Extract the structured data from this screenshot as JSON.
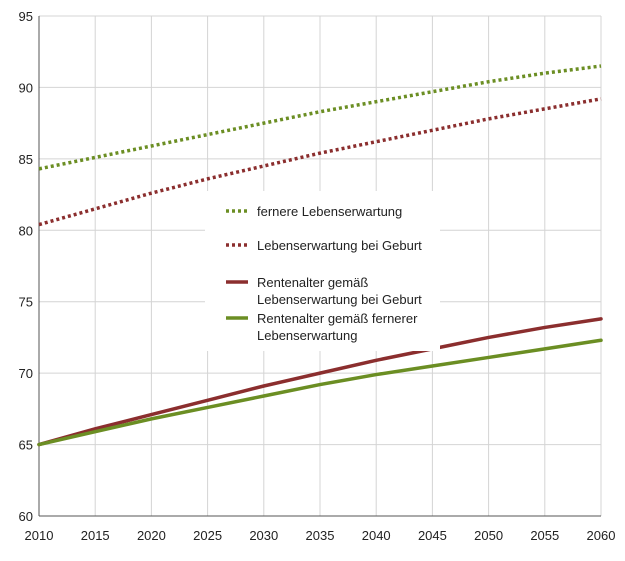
{
  "chart_data": {
    "type": "line",
    "title": "",
    "xlabel": "",
    "ylabel": "",
    "x": [
      2010,
      2015,
      2020,
      2025,
      2030,
      2035,
      2040,
      2045,
      2050,
      2055,
      2060
    ],
    "xlim": [
      2010,
      2060
    ],
    "ylim": [
      60,
      95
    ],
    "xticks": [
      2010,
      2015,
      2020,
      2025,
      2030,
      2035,
      2040,
      2045,
      2050,
      2055,
      2060
    ],
    "yticks": [
      60,
      65,
      70,
      75,
      80,
      85,
      90,
      95
    ],
    "grid": true,
    "legend_position": "center",
    "series": [
      {
        "name": "fernere Lebenserwartung",
        "legend_lines": [
          "fernere Lebenserwartung"
        ],
        "style": "dotted",
        "color": "#6b8e23",
        "values": [
          84.3,
          85.1,
          85.9,
          86.7,
          87.5,
          88.3,
          89.0,
          89.7,
          90.4,
          91.0,
          91.5
        ]
      },
      {
        "name": "Lebenserwartung bei Geburt",
        "legend_lines": [
          "Lebenserwartung bei Geburt"
        ],
        "style": "dotted",
        "color": "#8b2e2e",
        "values": [
          80.4,
          81.5,
          82.6,
          83.6,
          84.5,
          85.4,
          86.2,
          87.0,
          87.8,
          88.5,
          89.2
        ]
      },
      {
        "name": "Rentenalter gemäß Lebenserwartung bei Geburt",
        "legend_lines": [
          "Rentenalter gemäß",
          "Lebenserwartung bei Geburt"
        ],
        "style": "solid",
        "color": "#8b2e2e",
        "values": [
          65.0,
          66.1,
          67.1,
          68.1,
          69.1,
          70.0,
          70.9,
          71.7,
          72.5,
          73.2,
          73.8
        ]
      },
      {
        "name": "Rentenalter gemäß fernerer Lebenserwartung",
        "legend_lines": [
          "Rentenalter gemäß fernerer",
          "Lebenserwartung"
        ],
        "style": "solid",
        "color": "#6b8e23",
        "values": [
          65.0,
          65.9,
          66.8,
          67.6,
          68.4,
          69.2,
          69.9,
          70.5,
          71.1,
          71.7,
          72.3
        ]
      }
    ]
  }
}
